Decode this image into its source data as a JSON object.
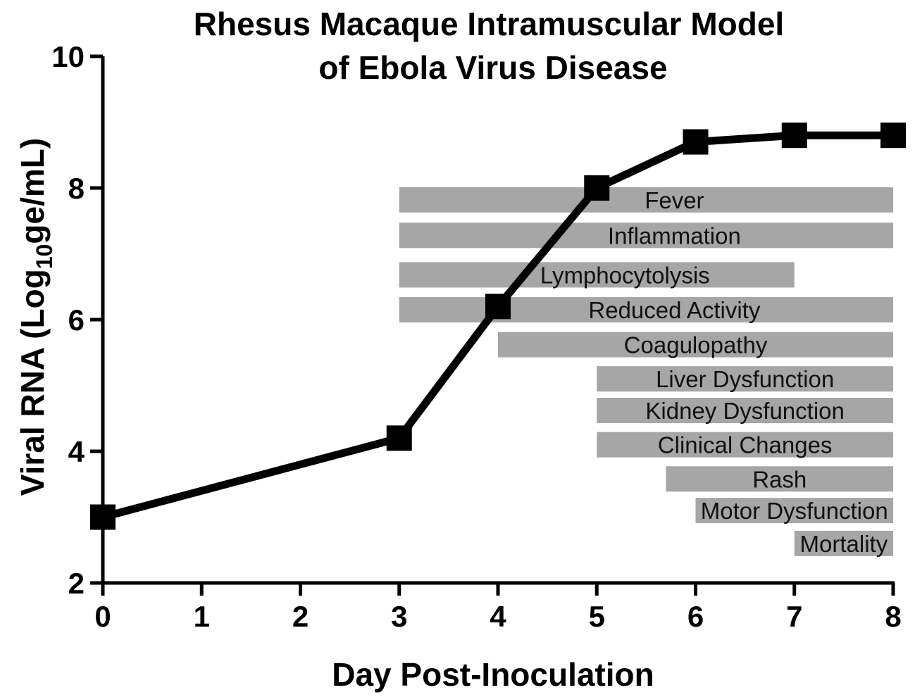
{
  "chart_data": {
    "type": "line",
    "title": [
      "Rhesus Macaque Intramuscular Model",
      "of Ebola Virus Disease"
    ],
    "xlabel": "Day Post-Inoculation",
    "ylabel": {
      "prefix": "Viral RNA  (Log",
      "subscript": "10",
      "suffix": "ge/mL)"
    },
    "xlim": [
      0,
      8
    ],
    "ylim": [
      2,
      10
    ],
    "xticks": [
      "0",
      "1",
      "2",
      "3",
      "4",
      "5",
      "6",
      "7",
      "8"
    ],
    "yticks": [
      "2",
      "4",
      "6",
      "8",
      "10"
    ],
    "series": [
      {
        "x": [
          0,
          3,
          4,
          5,
          6,
          7,
          8
        ],
        "y": [
          3.0,
          4.2,
          6.2,
          8.0,
          8.7,
          8.8,
          8.8
        ]
      }
    ],
    "bands": [
      {
        "label": "Fever",
        "start": 3.0,
        "end": 8.0,
        "y": 7.82
      },
      {
        "label": "Inflammation",
        "start": 3.0,
        "end": 8.0,
        "y": 7.28
      },
      {
        "label": "Lymphocytolysis",
        "start": 3.0,
        "end": 7.0,
        "y": 6.68
      },
      {
        "label": "Reduced Activity",
        "start": 3.0,
        "end": 8.0,
        "y": 6.15
      },
      {
        "label": "Coagulopathy",
        "start": 4.0,
        "end": 8.0,
        "y": 5.62
      },
      {
        "label": "Liver Dysfunction",
        "start": 5.0,
        "end": 8.0,
        "y": 5.1
      },
      {
        "label": "Kidney Dysfunction",
        "start": 5.0,
        "end": 8.0,
        "y": 4.62
      },
      {
        "label": "Clinical Changes",
        "start": 5.0,
        "end": 8.0,
        "y": 4.1
      },
      {
        "label": "Rash",
        "start": 5.7,
        "end": 8.0,
        "y": 3.58
      },
      {
        "label": "Motor Dysfunction",
        "start": 6.0,
        "end": 8.0,
        "y": 3.1
      },
      {
        "label": "Mortality",
        "start": 7.0,
        "end": 8.0,
        "y": 2.6
      }
    ],
    "colors": {
      "band": "#a6a6a6",
      "line": "#000000"
    },
    "grid": false
  }
}
